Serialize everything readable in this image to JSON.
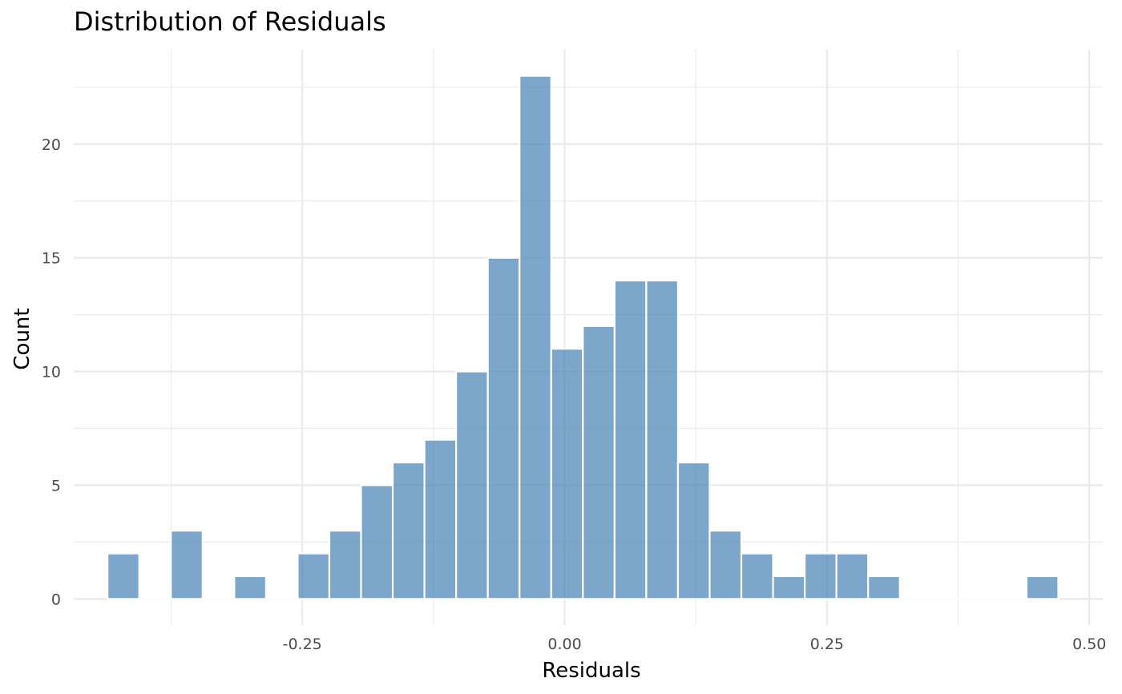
{
  "chart_data": {
    "type": "bar",
    "title": "Distribution of Residuals",
    "xlabel": "Residuals",
    "ylabel": "Count",
    "x_ticks": [
      "-0.25",
      "0.00",
      "0.25",
      "0.50"
    ],
    "x_tick_values": [
      -0.25,
      0.0,
      0.25,
      0.5
    ],
    "y_ticks": [
      "0",
      "5",
      "10",
      "15",
      "20"
    ],
    "y_tick_values": [
      0,
      5,
      10,
      15,
      20
    ],
    "xlim": [
      -0.4678,
      0.5128
    ],
    "ylim": [
      -1.15,
      24.15
    ],
    "bin_width": 0.0302,
    "bins": [
      {
        "center": -0.4205,
        "count": 2
      },
      {
        "center": -0.3903,
        "count": 0
      },
      {
        "center": -0.3601,
        "count": 3
      },
      {
        "center": -0.3299,
        "count": 0
      },
      {
        "center": -0.2997,
        "count": 1
      },
      {
        "center": -0.2695,
        "count": 0
      },
      {
        "center": -0.2393,
        "count": 2
      },
      {
        "center": -0.2091,
        "count": 3
      },
      {
        "center": -0.1789,
        "count": 5
      },
      {
        "center": -0.1487,
        "count": 6
      },
      {
        "center": -0.1185,
        "count": 7
      },
      {
        "center": -0.0883,
        "count": 10
      },
      {
        "center": -0.0581,
        "count": 15
      },
      {
        "center": -0.0279,
        "count": 23
      },
      {
        "center": 0.0023,
        "count": 11
      },
      {
        "center": 0.0325,
        "count": 12
      },
      {
        "center": 0.0627,
        "count": 14
      },
      {
        "center": 0.0929,
        "count": 14
      },
      {
        "center": 0.1231,
        "count": 6
      },
      {
        "center": 0.1533,
        "count": 3
      },
      {
        "center": 0.1835,
        "count": 2
      },
      {
        "center": 0.2137,
        "count": 1
      },
      {
        "center": 0.2439,
        "count": 2
      },
      {
        "center": 0.2741,
        "count": 2
      },
      {
        "center": 0.3043,
        "count": 1
      },
      {
        "center": 0.3345,
        "count": 0
      },
      {
        "center": 0.3647,
        "count": 0
      },
      {
        "center": 0.3949,
        "count": 0
      },
      {
        "center": 0.4251,
        "count": 0
      },
      {
        "center": 0.4553,
        "count": 1
      }
    ],
    "bar_fill": "#4682b4",
    "bar_opacity": 0.7,
    "bar_outline": "#ffffff",
    "grid": true,
    "grid_color": "#ebebeb",
    "axis_text_color": "#4d4d4d"
  }
}
